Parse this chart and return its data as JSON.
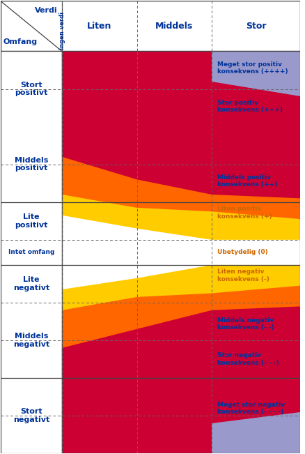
{
  "col_headers": [
    "Ingen verdi",
    "Liten",
    "Middels",
    "Stor"
  ],
  "row_headers": [
    "Stort\npositivt",
    "Middels\npositivt",
    "Lite\npositivt",
    "Intet omfang",
    "Lite\nnegativt",
    "Middels\nnegativt",
    "Stort\nnegativt"
  ],
  "header_top_left_1": "Verdi",
  "header_top_left_2": "Omfang",
  "header_rotated": "Ingen verdi",
  "colors": {
    "meget_stor_positiv": "#9999cc",
    "stor_positiv": "#cc0033",
    "middels_positiv": "#ff6600",
    "liten_positiv": "#ffcc00",
    "ubetydelig": "#ffffff",
    "liten_negativ": "#ffcc00",
    "middels_negativ": "#ff6600",
    "stor_negativ": "#cc0033",
    "meget_stor_negativ": "#9999cc",
    "text_blue": "#003399",
    "text_orange": "#cc6600",
    "border": "#333333",
    "dashed": "#666666"
  },
  "figsize": [
    4.39,
    6.51
  ],
  "dpi": 100
}
